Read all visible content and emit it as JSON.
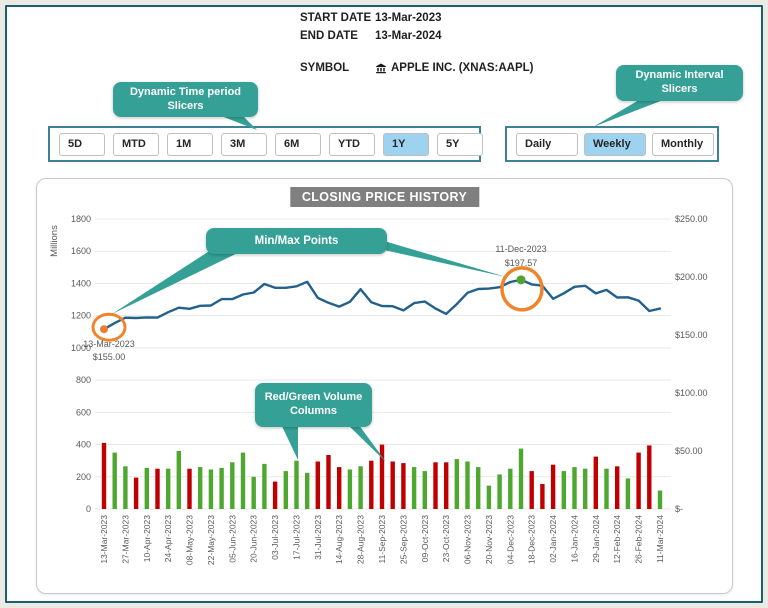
{
  "header": {
    "start_date_label": "START DATE",
    "start_date": "13-Mar-2023",
    "end_date_label": "END DATE",
    "end_date": "13-Mar-2024",
    "symbol_label": "SYMBOL",
    "symbol": "APPLE INC. (XNAS:AAPL)",
    "symbol_icon": "bank-icon"
  },
  "callouts": {
    "time_period": "Dynamic Time period\nSlicers",
    "interval": "Dynamic Interval\nSlicers",
    "minmax": "Min/Max Points",
    "volume_columns": "Red/Green Volume\nColumns",
    "color": "#35A096"
  },
  "slicers": {
    "time_period": {
      "options": [
        "5D",
        "MTD",
        "1M",
        "3M",
        "6M",
        "YTD",
        "1Y",
        "5Y"
      ],
      "selected": "1Y"
    },
    "interval": {
      "options": [
        "Daily",
        "Weekly",
        "Monthly"
      ],
      "selected": "Weekly"
    },
    "selected_color": "#9DD2F0"
  },
  "chart_data": {
    "type": "combo",
    "title": "CLOSING PRICE HISTORY",
    "x": [
      "13-Mar-2023",
      "20-Mar-2023",
      "27-Mar-2023",
      "03-Apr-2023",
      "10-Apr-2023",
      "17-Apr-2023",
      "24-Apr-2023",
      "01-May-2023",
      "08-May-2023",
      "15-May-2023",
      "22-May-2023",
      "30-May-2023",
      "05-Jun-2023",
      "12-Jun-2023",
      "20-Jun-2023",
      "26-Jun-2023",
      "03-Jul-2023",
      "10-Jul-2023",
      "17-Jul-2023",
      "24-Jul-2023",
      "31-Jul-2023",
      "07-Aug-2023",
      "14-Aug-2023",
      "21-Aug-2023",
      "28-Aug-2023",
      "05-Sep-2023",
      "11-Sep-2023",
      "18-Sep-2023",
      "25-Sep-2023",
      "02-Oct-2023",
      "09-Oct-2023",
      "16-Oct-2023",
      "23-Oct-2023",
      "30-Oct-2023",
      "06-Nov-2023",
      "13-Nov-2023",
      "20-Nov-2023",
      "27-Nov-2023",
      "04-Dec-2023",
      "11-Dec-2023",
      "18-Dec-2023",
      "26-Dec-2023",
      "02-Jan-2024",
      "08-Jan-2024",
      "16-Jan-2024",
      "22-Jan-2024",
      "29-Jan-2024",
      "05-Feb-2024",
      "12-Feb-2024",
      "20-Feb-2024",
      "26-Feb-2024",
      "04-Mar-2024",
      "11-Mar-2024"
    ],
    "series": [
      {
        "name": "Closing Price",
        "type": "line",
        "axis": "right",
        "color": "#21618C",
        "values": [
          155.0,
          160.25,
          164.9,
          164.66,
          165.21,
          165.02,
          169.68,
          173.57,
          172.57,
          175.16,
          175.43,
          180.95,
          180.96,
          184.92,
          186.68,
          193.97,
          190.68,
          190.69,
          191.94,
          195.83,
          181.99,
          177.79,
          174.49,
          178.61,
          189.46,
          178.18,
          175.01,
          174.79,
          171.21,
          177.49,
          178.85,
          172.88,
          168.22,
          176.65,
          186.4,
          189.69,
          189.97,
          191.24,
          195.71,
          197.57,
          193.6,
          192.53,
          181.18,
          185.92,
          191.56,
          192.42,
          185.85,
          188.85,
          182.31,
          182.52,
          179.66,
          170.73,
          172.75
        ]
      },
      {
        "name": "Volume (Millions)",
        "type": "bar",
        "axis": "left",
        "values": [
          410,
          350,
          265,
          195,
          255,
          250,
          250,
          360,
          250,
          260,
          245,
          255,
          290,
          350,
          200,
          280,
          170,
          235,
          300,
          225,
          295,
          335,
          260,
          245,
          265,
          300,
          400,
          295,
          285,
          260,
          235,
          290,
          290,
          310,
          295,
          260,
          145,
          215,
          250,
          375,
          235,
          155,
          275,
          235,
          260,
          250,
          325,
          250,
          265,
          190,
          350,
          395,
          115
        ],
        "directions": [
          "down",
          "up",
          "up",
          "down",
          "up",
          "down",
          "up",
          "up",
          "down",
          "up",
          "up",
          "up",
          "up",
          "up",
          "up",
          "up",
          "down",
          "up",
          "up",
          "up",
          "down",
          "down",
          "down",
          "up",
          "up",
          "down",
          "down",
          "down",
          "down",
          "up",
          "up",
          "down",
          "down",
          "up",
          "up",
          "up",
          "up",
          "up",
          "up",
          "up",
          "down",
          "down",
          "down",
          "up",
          "up",
          "up",
          "down",
          "up",
          "down",
          "up",
          "down",
          "down",
          "up"
        ]
      }
    ],
    "bar_up_color": "#4EA72E",
    "bar_down_color": "#C00000",
    "left_axis": {
      "title": "Millions",
      "min": 0,
      "max": 1800,
      "step": 200,
      "tick_labels": [
        "0",
        "200",
        "400",
        "600",
        "800",
        "1000",
        "1200",
        "1400",
        "1600",
        "1800"
      ]
    },
    "right_axis": {
      "min": 0,
      "max": 250,
      "step": 50,
      "tick_labels": [
        "$-",
        "$50.00",
        "$100.00",
        "$150.00",
        "$200.00",
        "$250.00"
      ]
    },
    "x_axis": {
      "label_every": 2,
      "labels": [
        "13-Mar-2023",
        "27-Mar-2023",
        "10-Apr-2023",
        "24-Apr-2023",
        "08-May-2023",
        "22-May-2023",
        "05-Jun-2023",
        "20-Jun-2023",
        "03-Jul-2023",
        "17-Jul-2023",
        "31-Jul-2023",
        "14-Aug-2023",
        "28-Aug-2023",
        "11-Sep-2023",
        "25-Sep-2023",
        "09-Oct-2023",
        "23-Oct-2023",
        "06-Nov-2023",
        "20-Nov-2023",
        "04-Dec-2023",
        "18-Dec-2023",
        "02-Jan-2024",
        "16-Jan-2024",
        "29-Jan-2024",
        "12-Feb-2024",
        "26-Feb-2024",
        "11-Mar-2024"
      ]
    },
    "grid": true,
    "annotations": {
      "min": {
        "index": 0,
        "date": "13-Mar-2023",
        "value_label": "$155.00"
      },
      "max": {
        "index": 39,
        "date": "11-Dec-2023",
        "value_label": "$197.57"
      },
      "highlight_color": "#F0842C",
      "min_marker_color": "#ED7D31",
      "max_marker_color": "#54A12F",
      "text_color": "#595959"
    }
  }
}
